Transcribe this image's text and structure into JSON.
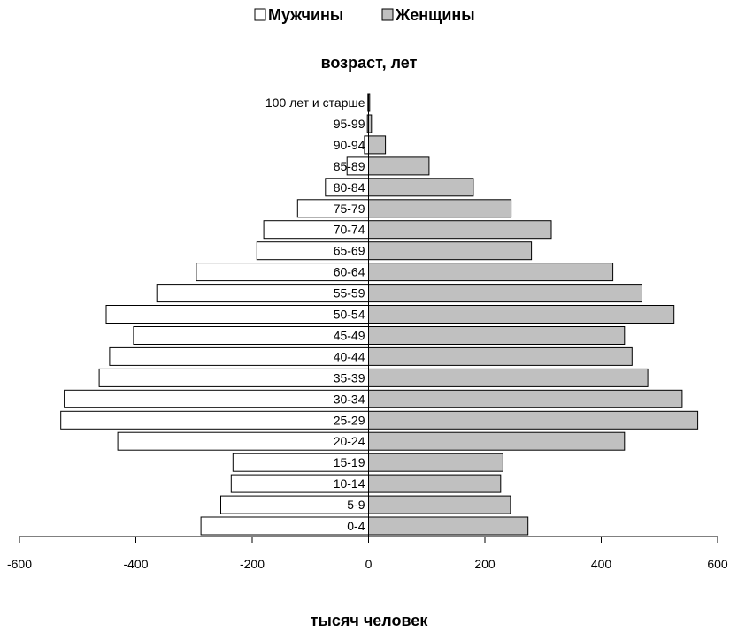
{
  "chart_data": {
    "type": "bar",
    "orientation": "horizontal",
    "title": "возраст, лет",
    "xlabel": "тысяч человек",
    "ylabel": "",
    "xlim": [
      -600,
      600
    ],
    "xticks": [
      -600,
      -400,
      -200,
      0,
      200,
      400,
      600
    ],
    "legend_position": "top-center",
    "grid": false,
    "categories": [
      "0-4",
      "5-9",
      "10-14",
      "15-19",
      "20-24",
      "25-29",
      "30-34",
      "35-39",
      "40-44",
      "45-49",
      "50-54",
      "55-59",
      "60-64",
      "65-69",
      "70-74",
      "75-79",
      "80-84",
      "85-89",
      "90-94",
      "95-99",
      "100 лет и старше"
    ],
    "series": [
      {
        "name": "Мужчины",
        "color": "#ffffff",
        "values": [
          -288,
          -254,
          -236,
          -233,
          -431,
          -529,
          -523,
          -463,
          -445,
          -404,
          -451,
          -364,
          -296,
          -192,
          -180,
          -122,
          -74,
          -37,
          -7,
          -2,
          -1
        ]
      },
      {
        "name": "Женщины",
        "color": "#c0c0c0",
        "values": [
          274,
          244,
          227,
          231,
          440,
          566,
          539,
          480,
          453,
          440,
          525,
          470,
          420,
          280,
          314,
          245,
          180,
          104,
          29,
          5,
          2
        ]
      }
    ]
  }
}
